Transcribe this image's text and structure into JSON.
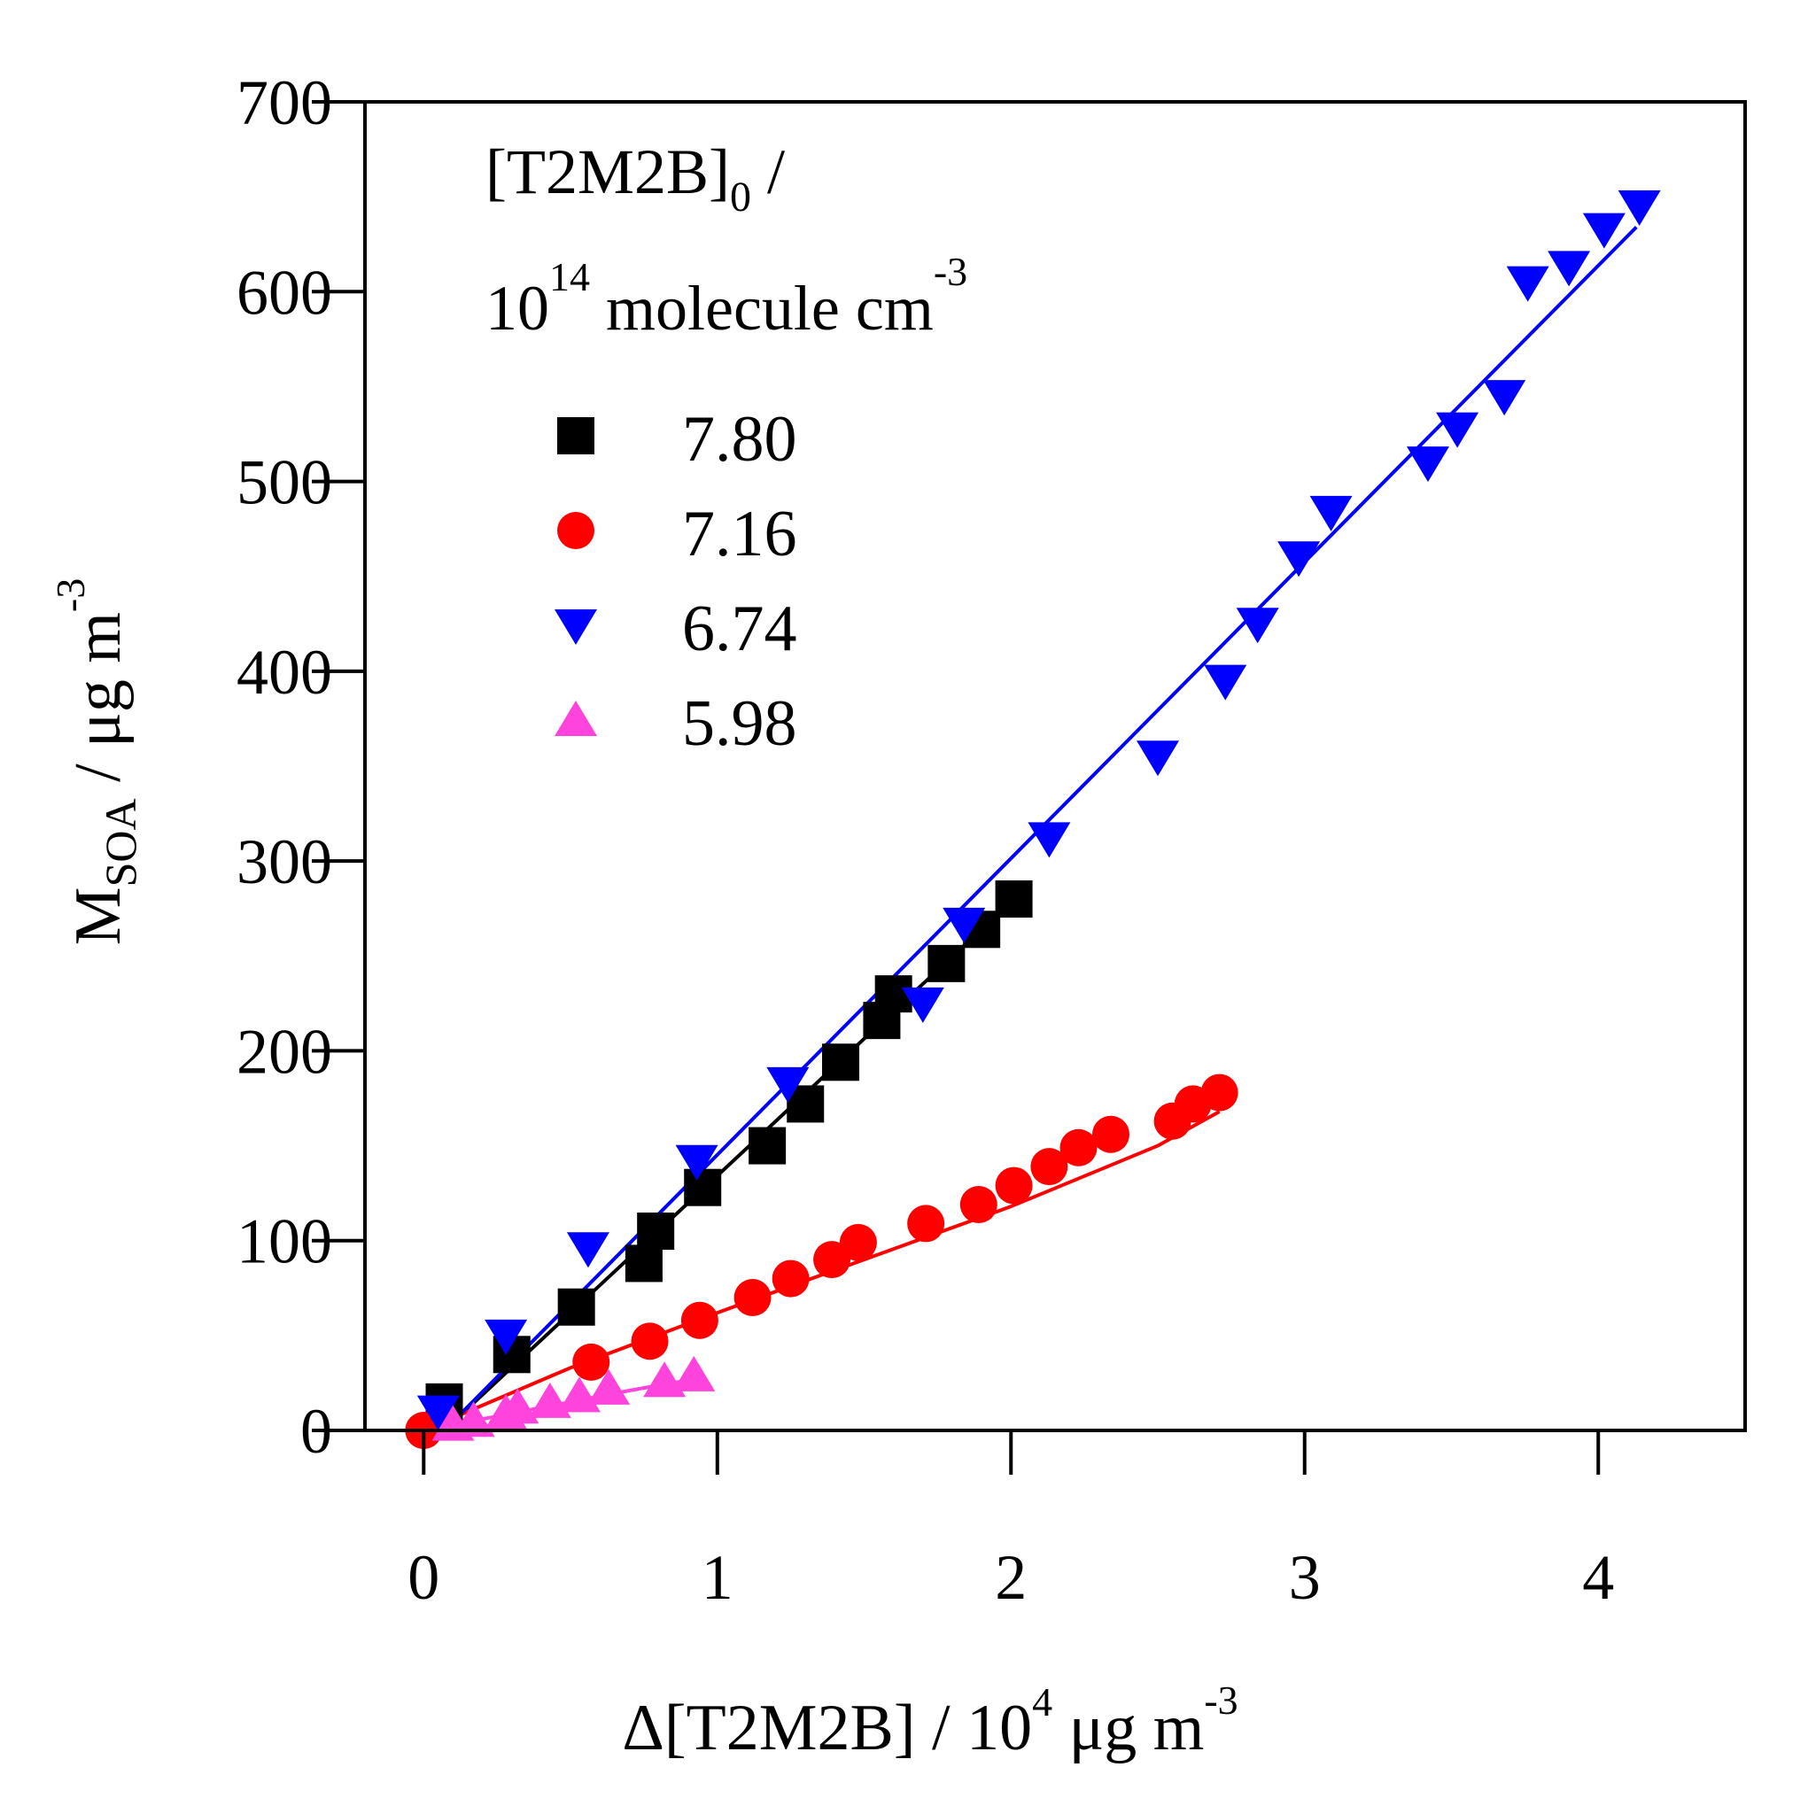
{
  "chart_data": {
    "type": "scatter",
    "title": "",
    "xlabel": {
      "prefix": "Δ[T2M2B] / 10",
      "exponent": "4",
      "unit": "μg m",
      "unit_exponent": "-3"
    },
    "ylabel": {
      "main": "M",
      "subscript": "SOA",
      "unit": " /  μg m",
      "unit_exponent": "-3"
    },
    "xlim": [
      -0.2,
      4.5
    ],
    "ylim": [
      0,
      700
    ],
    "xticks": [
      0,
      1,
      2,
      3,
      4
    ],
    "xtick_labels": [
      "0",
      "1",
      "2",
      "3",
      "4"
    ],
    "yticks": [
      0,
      100,
      200,
      300,
      400,
      500,
      600,
      700
    ],
    "ytick_labels": [
      "0",
      "100",
      "200",
      "300",
      "400",
      "500",
      "600",
      "700"
    ],
    "legend": {
      "placement": "top-left",
      "title_line1": "[T2M2B]",
      "title_line1_sub": "0",
      "title_line1_suffix": " /",
      "title_line2_base": "10",
      "title_line2_exp": "14",
      "title_line2_unit": " molecule cm",
      "title_line2_unit_exp": "-3"
    },
    "series": [
      {
        "name": "7.80",
        "marker": "square",
        "color": "#000000",
        "points": [
          [
            0.07,
            15
          ],
          [
            0.3,
            40
          ],
          [
            0.52,
            65
          ],
          [
            0.75,
            88
          ],
          [
            0.79,
            105
          ],
          [
            0.95,
            128
          ],
          [
            1.17,
            150
          ],
          [
            1.3,
            172
          ],
          [
            1.42,
            194
          ],
          [
            1.56,
            216
          ],
          [
            1.6,
            230
          ],
          [
            1.78,
            246
          ],
          [
            1.9,
            264
          ],
          [
            2.01,
            280
          ]
        ],
        "fit": [
          [
            0.07,
            0
          ],
          [
            2.01,
            280
          ]
        ]
      },
      {
        "name": "7.16",
        "marker": "circle",
        "color": "#ff0000",
        "points": [
          [
            0.0,
            0
          ],
          [
            0.57,
            36
          ],
          [
            0.77,
            47
          ],
          [
            0.94,
            58
          ],
          [
            1.12,
            70
          ],
          [
            1.25,
            80
          ],
          [
            1.39,
            90
          ],
          [
            1.48,
            99
          ],
          [
            1.71,
            109
          ],
          [
            1.89,
            119
          ],
          [
            2.01,
            129
          ],
          [
            2.13,
            139
          ],
          [
            2.23,
            149
          ],
          [
            2.34,
            156
          ],
          [
            2.55,
            163
          ],
          [
            2.62,
            172
          ],
          [
            2.71,
            178
          ]
        ],
        "fit": [
          [
            0.0,
            0
          ],
          [
            0.5,
            33
          ],
          [
            1.0,
            62
          ],
          [
            1.5,
            90
          ],
          [
            2.0,
            118
          ],
          [
            2.5,
            150
          ],
          [
            2.71,
            168
          ]
        ]
      },
      {
        "name": "6.74",
        "marker": "triangle-down",
        "color": "#0000ff",
        "points": [
          [
            0.05,
            10
          ],
          [
            0.28,
            50
          ],
          [
            0.56,
            96
          ],
          [
            0.93,
            142
          ],
          [
            1.24,
            183
          ],
          [
            1.7,
            225
          ],
          [
            1.84,
            267
          ],
          [
            2.13,
            312
          ],
          [
            2.5,
            355
          ],
          [
            2.73,
            395
          ],
          [
            2.84,
            425
          ],
          [
            2.98,
            460
          ],
          [
            3.09,
            484
          ],
          [
            3.42,
            510
          ],
          [
            3.52,
            528
          ],
          [
            3.68,
            545
          ],
          [
            3.76,
            605
          ],
          [
            3.9,
            613
          ],
          [
            4.02,
            633
          ],
          [
            4.14,
            645
          ]
        ],
        "fit": [
          [
            0.07,
            0
          ],
          [
            4.13,
            634
          ]
        ]
      },
      {
        "name": "5.98",
        "marker": "triangle-up",
        "color": "#ff44dd",
        "points": [
          [
            0.1,
            3
          ],
          [
            0.17,
            5
          ],
          [
            0.28,
            9
          ],
          [
            0.32,
            12
          ],
          [
            0.43,
            15
          ],
          [
            0.53,
            18
          ],
          [
            0.63,
            22
          ],
          [
            0.82,
            26
          ],
          [
            0.92,
            29
          ]
        ],
        "fit": [
          [
            0.1,
            3
          ],
          [
            0.3,
            9
          ],
          [
            0.5,
            15
          ],
          [
            0.7,
            21
          ],
          [
            0.92,
            27
          ]
        ]
      }
    ]
  }
}
